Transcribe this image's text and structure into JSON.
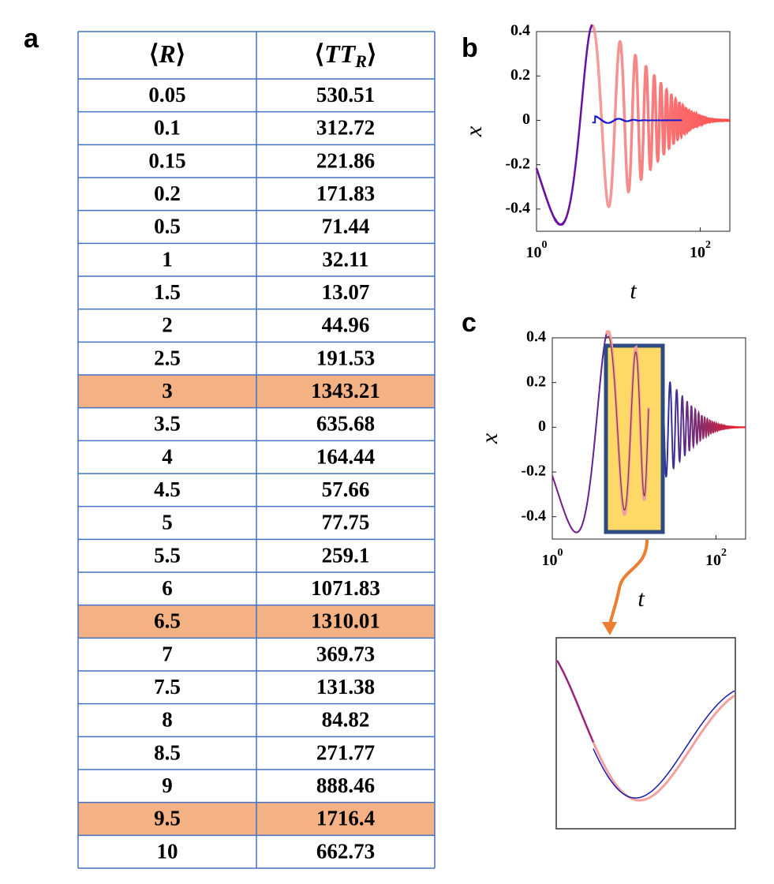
{
  "panel_labels": [
    "a",
    "b",
    "c"
  ],
  "table": {
    "header": [
      {
        "open": "⟨",
        "main": "R",
        "close": "⟩"
      },
      {
        "open": "⟨",
        "main": "TT",
        "sub": "R",
        "close": "⟩"
      }
    ],
    "rows": [
      [
        "0.05",
        "530.51"
      ],
      [
        "0.1",
        "312.72"
      ],
      [
        "0.15",
        "221.86"
      ],
      [
        "0.2",
        "171.83"
      ],
      [
        "0.5",
        "71.44"
      ],
      [
        "1",
        "32.11"
      ],
      [
        "1.5",
        "13.07"
      ],
      [
        "2",
        "44.96"
      ],
      [
        "2.5",
        "191.53"
      ],
      [
        "3",
        "1343.21"
      ],
      [
        "3.5",
        "635.68"
      ],
      [
        "4",
        "164.44"
      ],
      [
        "4.5",
        "57.66"
      ],
      [
        "5",
        "77.75"
      ],
      [
        "5.5",
        "259.1"
      ],
      [
        "6",
        "1071.83"
      ],
      [
        "6.5",
        "1310.01"
      ],
      [
        "7",
        "369.73"
      ],
      [
        "7.5",
        "131.38"
      ],
      [
        "8",
        "84.82"
      ],
      [
        "8.5",
        "271.77"
      ],
      [
        "9",
        "888.46"
      ],
      [
        "9.5",
        "1716.4"
      ],
      [
        "10",
        "662.73"
      ]
    ],
    "highlight_rows": [
      9,
      16,
      22
    ],
    "highlight_color": "#f4b183"
  },
  "plots": [
    {
      "ylabel": "x",
      "xlabel": "t",
      "ylim": [
        -0.5,
        0.4
      ],
      "yticks": [
        0.4,
        0.2,
        0,
        -0.2,
        -0.4
      ],
      "xlim": [
        1,
        230
      ],
      "xticks": [
        {
          "value": 1,
          "label": "10",
          "sup": "0"
        },
        {
          "value": 100,
          "label": "10",
          "sup": "2"
        }
      ]
    },
    {
      "ylabel": "x",
      "xlabel": "t",
      "ylim": [
        -0.5,
        0.4
      ],
      "yticks": [
        0.4,
        0.2,
        0,
        -0.2,
        -0.4
      ],
      "xlim": [
        1,
        230
      ],
      "xticks": [
        {
          "value": 1,
          "label": "10",
          "sup": "0"
        },
        {
          "value": 100,
          "label": "10",
          "sup": "2"
        }
      ]
    }
  ]
}
